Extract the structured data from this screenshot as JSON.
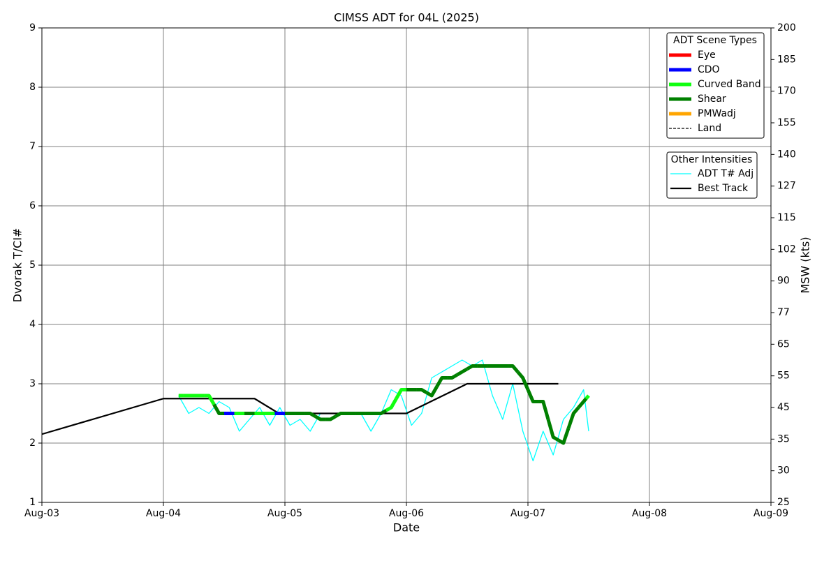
{
  "chart_data": {
    "type": "line",
    "title": "CIMSS ADT for 04L (2025)",
    "x_label": "Date",
    "y_label": "Dvorak T/CI#",
    "y2_label": "MSW (kts)",
    "xlim": [
      3,
      9
    ],
    "xticks": [
      {
        "value": 3,
        "label": "Aug-03"
      },
      {
        "value": 4,
        "label": "Aug-04"
      },
      {
        "value": 5,
        "label": "Aug-05"
      },
      {
        "value": 6,
        "label": "Aug-06"
      },
      {
        "value": 7,
        "label": "Aug-07"
      },
      {
        "value": 8,
        "label": "Aug-08"
      },
      {
        "value": 9,
        "label": "Aug-09"
      }
    ],
    "ylim": [
      1,
      9
    ],
    "yticks": [
      1,
      2,
      3,
      4,
      5,
      6,
      7,
      8,
      9
    ],
    "y2lim": [
      25,
      200
    ],
    "y2ticks": [
      25,
      30,
      35,
      45,
      55,
      65,
      77,
      90,
      102,
      115,
      127,
      140,
      155,
      170,
      185,
      200
    ],
    "grid": true,
    "scene_types": {
      "title": "ADT Scene Types",
      "items": [
        {
          "name": "Eye",
          "color": "#ff0000"
        },
        {
          "name": "CDO",
          "color": "#0000ff"
        },
        {
          "name": "Curved Band",
          "color": "#11ff11"
        },
        {
          "name": "Shear",
          "color": "#008000"
        },
        {
          "name": "PMWadj",
          "color": "#ffa500"
        },
        {
          "name": "Land",
          "color": "#000000",
          "dashed": true
        }
      ]
    },
    "other_intensities_title": "Other Intensities",
    "x": [
      4.125,
      4.208,
      4.292,
      4.375,
      4.458,
      4.542,
      4.625,
      4.708,
      4.792,
      4.875,
      4.958,
      5.042,
      5.125,
      5.208,
      5.292,
      5.375,
      5.458,
      5.542,
      5.625,
      5.708,
      5.792,
      5.875,
      5.958,
      6.042,
      6.125,
      6.208,
      6.292,
      6.375,
      6.458,
      6.542,
      6.625,
      6.708,
      6.792,
      6.875,
      6.958,
      7.042,
      7.125,
      7.208,
      7.292,
      7.375,
      7.458,
      7.5
    ],
    "scene_line": {
      "values": [
        2.8,
        2.8,
        2.8,
        2.8,
        2.5,
        2.5,
        2.5,
        2.5,
        2.5,
        2.5,
        2.5,
        2.5,
        2.5,
        2.5,
        2.4,
        2.4,
        2.5,
        2.5,
        2.5,
        2.5,
        2.5,
        2.6,
        2.9,
        2.9,
        2.9,
        2.8,
        3.1,
        3.1,
        3.2,
        3.3,
        3.3,
        3.3,
        3.3,
        3.3,
        3.1,
        2.7,
        2.7,
        2.1,
        2.0,
        2.5,
        2.7,
        2.8
      ],
      "scene": [
        "Curved Band",
        "Curved Band",
        "Curved Band",
        "Curved Band",
        "Shear",
        "CDO",
        "Curved Band",
        "Shear",
        "Curved Band",
        "Curved Band",
        "CDO",
        "Shear",
        "Shear",
        "Shear",
        "Shear",
        "Shear",
        "Shear",
        "Shear",
        "Shear",
        "Shear",
        "Shear",
        "Curved Band",
        "Curved Band",
        "Shear",
        "Shear",
        "Shear",
        "Shear",
        "Shear",
        "Shear",
        "Shear",
        "Shear",
        "Shear",
        "Shear",
        "Shear",
        "Shear",
        "Shear",
        "Shear",
        "Shear",
        "Shear",
        "Shear",
        "Shear",
        "Curved Band"
      ]
    },
    "series": [
      {
        "name": "ADT T# Adj",
        "color": "#00ffff",
        "values": [
          2.8,
          2.5,
          2.6,
          2.5,
          2.7,
          2.6,
          2.2,
          2.4,
          2.6,
          2.3,
          2.6,
          2.3,
          2.4,
          2.2,
          2.5,
          2.5,
          2.5,
          2.5,
          2.5,
          2.2,
          2.5,
          2.9,
          2.8,
          2.3,
          2.5,
          3.1,
          3.2,
          3.3,
          3.4,
          3.3,
          3.4,
          2.8,
          2.4,
          3.0,
          2.2,
          1.7,
          2.2,
          1.8,
          2.4,
          2.6,
          2.9,
          2.2
        ]
      },
      {
        "name": "Best Track",
        "color": "#000000",
        "x": [
          3,
          4,
          4.75,
          4.95,
          6,
          6.5,
          7.25
        ],
        "values": [
          2.15,
          2.75,
          2.75,
          2.5,
          2.5,
          3.0,
          3.0
        ]
      }
    ]
  }
}
